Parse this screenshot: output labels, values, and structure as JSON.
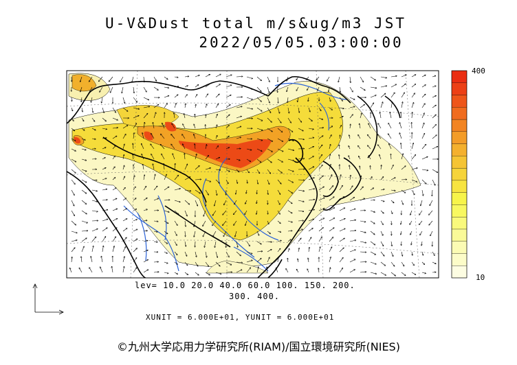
{
  "title": {
    "line1": "U-V&Dust total m/s&ug/m3 JST",
    "line2": "2022/05/05.03:00:00"
  },
  "legend": {
    "levels_line1": "lev= 10.0 20.0 40.0 60.0 100. 150. 200.",
    "levels_line2": "300. 400.",
    "units": "XUNIT = 6.000E+01, YUNIT = 6.000E+01"
  },
  "colorbar": {
    "max_label": "400",
    "min_label": "10",
    "colors": [
      "#fdfde2",
      "#fcfcc8",
      "#fbfbb4",
      "#fafa98",
      "#f9f97c",
      "#f8f860",
      "#f7f44a",
      "#f7e440",
      "#f6d43a",
      "#f5c434",
      "#f4b02e",
      "#f39c28",
      "#f28422",
      "#f06c1e",
      "#ee561a",
      "#ec4016",
      "#ea2e12"
    ]
  },
  "map_colors": {
    "coast": "#000000",
    "river": "#2a62d8",
    "dust_low": "#fbf7c4",
    "dust_mid": "#f5dc3a",
    "dust_high": "#f2a225",
    "dust_peak": "#ec4a16"
  },
  "copyright": "©九州大学応用力学研究所(RIAM)/国立環境研究所(NIES)"
}
